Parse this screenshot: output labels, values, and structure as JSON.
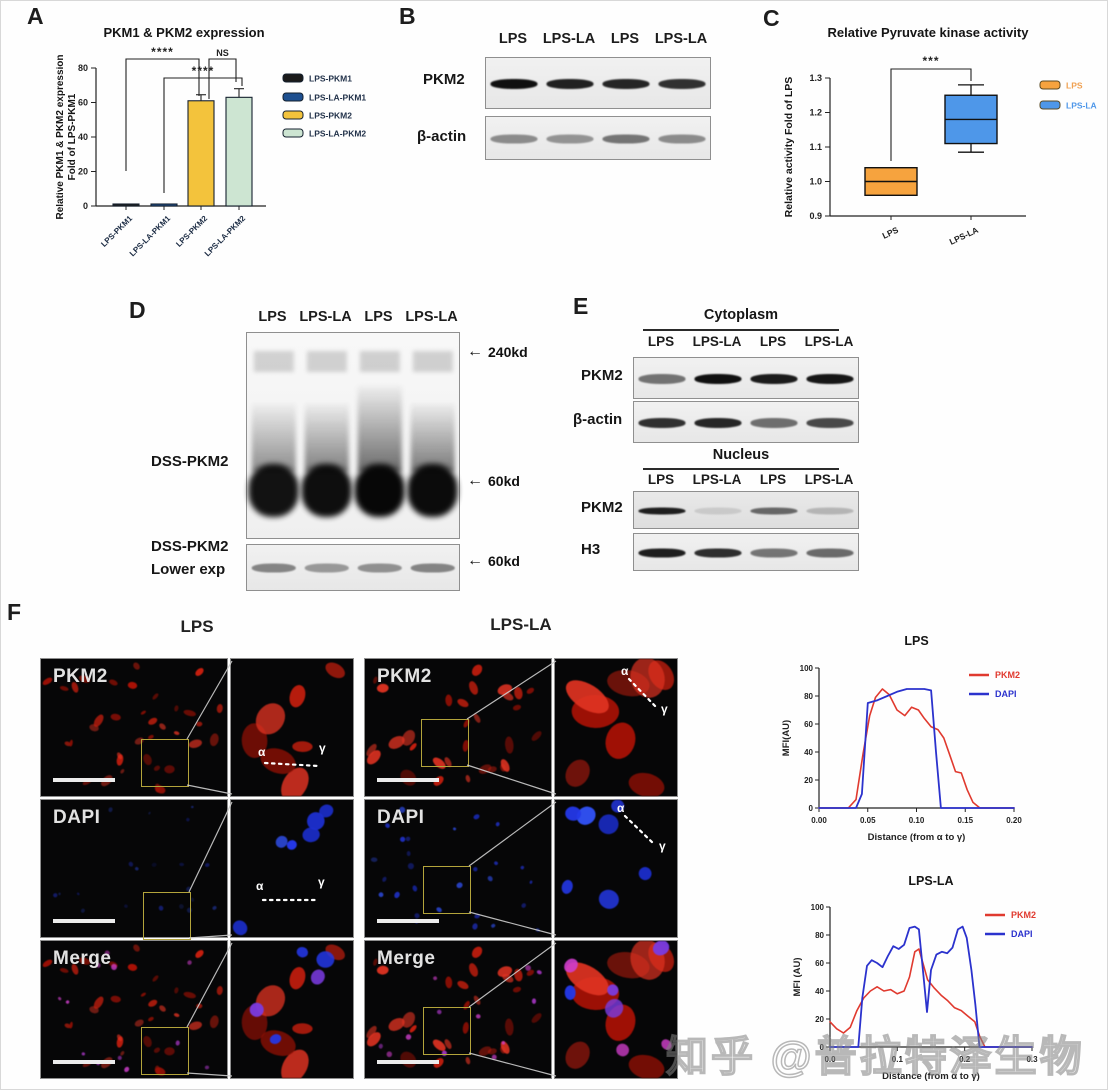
{
  "watermark": {
    "text": "知乎 @普拉特泽生物"
  },
  "panels": {
    "A": {
      "tag": "A"
    },
    "B": {
      "tag": "B",
      "lanes": [
        "LPS",
        "LPS-LA",
        "LPS",
        "LPS-LA"
      ],
      "blots": [
        {
          "label": "PKM2",
          "bands": [
            1,
            0.92,
            0.9,
            0.85
          ]
        },
        {
          "label": "β-actin",
          "bands": [
            0.55,
            0.5,
            0.68,
            0.55
          ]
        }
      ]
    },
    "C": {
      "tag": "C"
    },
    "D": {
      "tag": "D",
      "lanes": [
        "LPS",
        "LPS-LA",
        "LPS",
        "LPS-LA"
      ],
      "label_main": "DSS-PKM2",
      "label_lower_line1": "DSS-PKM2",
      "label_lower_line2": "Lower exp",
      "markers": {
        "m240": "240kd",
        "m60_main": "60kd",
        "m60_lower": "60kd"
      },
      "smear": [
        0.75,
        0.85,
        1,
        0.9
      ],
      "lower_bands": [
        0.62,
        0.5,
        0.55,
        0.62
      ]
    },
    "E": {
      "tag": "E",
      "sections": [
        {
          "title": "Cytoplasm",
          "lanes": [
            "LPS",
            "LPS-LA",
            "LPS",
            "LPS-LA"
          ],
          "blots": [
            {
              "label": "PKM2",
              "bands": [
                0.55,
                1,
                0.95,
                0.97
              ]
            },
            {
              "label": "β-actin",
              "bands": [
                0.9,
                0.95,
                0.6,
                0.78
              ]
            }
          ]
        },
        {
          "title": "Nucleus",
          "lanes": [
            "LPS",
            "LPS-LA",
            "LPS",
            "LPS-LA"
          ],
          "blots": [
            {
              "label": "PKM2",
              "bands": [
                0.95,
                0.12,
                0.6,
                0.22
              ]
            },
            {
              "label": "H3",
              "bands": [
                0.95,
                0.88,
                0.55,
                0.6
              ]
            }
          ]
        }
      ]
    },
    "F": {
      "tag": "F",
      "columns": [
        "LPS",
        "LPS-LA"
      ],
      "rows": [
        "PKM2",
        "DAPI",
        "Merge"
      ],
      "alpha": "α",
      "gamma": "γ"
    }
  },
  "chart_data": [
    {
      "id": "A",
      "type": "bar",
      "title": "PKM1 & PKM2 expression",
      "ylabel": [
        "Relative PKM1 & PKM2 expression",
        "Fold of LPS-PKM1"
      ],
      "categories": [
        "LPS-PKM1",
        "LPS-LA-PKM1",
        "LPS-PKM2",
        "LPS-LA-PKM2"
      ],
      "values": [
        1,
        1,
        61,
        63
      ],
      "errors": [
        0.4,
        0.4,
        3.5,
        5
      ],
      "bar_colors": [
        "#1a1a1a",
        "#1d4f8f",
        "#f3c33c",
        "#cde5d2"
      ],
      "bar_border": "#16212f",
      "ylim": [
        0,
        80
      ],
      "yticks": [
        0,
        20,
        40,
        60,
        80
      ],
      "legend": [
        {
          "label": "LPS-PKM1",
          "color": "#1a1a1a"
        },
        {
          "label": "LPS-LA-PKM1",
          "color": "#1d4f8f"
        },
        {
          "label": "LPS-PKM2",
          "color": "#f3c33c"
        },
        {
          "label": "LPS-LA-PKM2",
          "color": "#cde5d2"
        }
      ],
      "significance": [
        {
          "from": 0,
          "to": 2,
          "label": "****"
        },
        {
          "from": 1,
          "to": 3,
          "label": "****"
        },
        {
          "from": 2,
          "to": 3,
          "label": "NS"
        }
      ]
    },
    {
      "id": "C",
      "type": "box",
      "title": "Relative Pyruvate kinase activity",
      "ylabel": "Relative activity Fold of LPS",
      "categories": [
        "LPS",
        "LPS-LA"
      ],
      "boxes": [
        {
          "label": "LPS",
          "whisker_low": 0.96,
          "q1": 0.96,
          "median": 1.0,
          "q3": 1.04,
          "whisker_high": 1.04,
          "fill": "#f6a33e"
        },
        {
          "label": "LPS-LA",
          "whisker_low": 1.085,
          "q1": 1.11,
          "median": 1.18,
          "q3": 1.25,
          "whisker_high": 1.28,
          "fill": "#4e97e9"
        }
      ],
      "ylim": [
        0.9,
        1.3
      ],
      "yticks": [
        0.9,
        1.0,
        1.1,
        1.2,
        1.3
      ],
      "legend": [
        {
          "label": "LPS",
          "color": "#f6a33e",
          "text_color": "#f0a050"
        },
        {
          "label": "LPS-LA",
          "color": "#4e97e9",
          "text_color": "#4e97e9"
        }
      ],
      "significance": {
        "label": "***"
      }
    },
    {
      "id": "F-LPS",
      "type": "line",
      "title": "LPS",
      "xlabel": "Distance (from α to γ)",
      "ylabel": "MFI(AU)",
      "xlim": [
        0,
        0.2
      ],
      "xticks": [
        "0.00",
        "0.05",
        "0.10",
        "0.15",
        "0.20"
      ],
      "ylim": [
        0,
        100
      ],
      "yticks": [
        0,
        20,
        40,
        60,
        80,
        100
      ],
      "series": [
        {
          "name": "PKM2",
          "color": "#e03a2f",
          "x": [
            0,
            0.03,
            0.038,
            0.045,
            0.052,
            0.058,
            0.065,
            0.072,
            0.08,
            0.088,
            0.095,
            0.102,
            0.108,
            0.115,
            0.122,
            0.128,
            0.134,
            0.14,
            0.146,
            0.152,
            0.158,
            0.165,
            0.2
          ],
          "y": [
            0,
            0,
            6,
            38,
            66,
            79,
            85,
            81,
            70,
            66,
            72,
            70,
            64,
            58,
            56,
            50,
            38,
            26,
            25,
            13,
            4,
            0,
            0
          ]
        },
        {
          "name": "DAPI",
          "color": "#2b32cd",
          "x": [
            0,
            0.038,
            0.044,
            0.05,
            0.06,
            0.07,
            0.08,
            0.09,
            0.1,
            0.108,
            0.115,
            0.12,
            0.125,
            0.2
          ],
          "y": [
            0,
            0,
            10,
            75,
            77,
            80,
            83,
            85,
            85,
            85,
            84,
            40,
            0,
            0
          ]
        }
      ]
    },
    {
      "id": "F-LPSLA",
      "type": "line",
      "title": "LPS-LA",
      "xlabel": "Distance (from α to γ)",
      "ylabel": "MFI (AU)",
      "xlim": [
        0,
        0.3
      ],
      "xticks": [
        "0.0",
        "0.1",
        "0.2",
        "0.3"
      ],
      "ylim": [
        0,
        100
      ],
      "yticks": [
        0,
        20,
        40,
        60,
        80,
        100
      ],
      "series": [
        {
          "name": "PKM2",
          "color": "#e03a2f",
          "x": [
            0,
            0.01,
            0.02,
            0.03,
            0.04,
            0.05,
            0.06,
            0.07,
            0.08,
            0.09,
            0.1,
            0.11,
            0.118,
            0.126,
            0.132,
            0.138,
            0.145,
            0.155,
            0.165,
            0.175,
            0.185,
            0.195,
            0.205,
            0.215,
            0.222,
            0.23,
            0.3
          ],
          "y": [
            18,
            13,
            10,
            14,
            26,
            35,
            40,
            43,
            40,
            41,
            38,
            40,
            50,
            68,
            70,
            60,
            48,
            42,
            37,
            33,
            28,
            26,
            22,
            18,
            8,
            0,
            0
          ]
        },
        {
          "name": "DAPI",
          "color": "#2b32cd",
          "x": [
            0,
            0.042,
            0.048,
            0.055,
            0.062,
            0.07,
            0.078,
            0.086,
            0.094,
            0.102,
            0.11,
            0.118,
            0.126,
            0.132,
            0.138,
            0.144,
            0.15,
            0.158,
            0.166,
            0.174,
            0.182,
            0.19,
            0.197,
            0.203,
            0.21,
            0.216,
            0.222,
            0.3
          ],
          "y": [
            0,
            0,
            35,
            58,
            62,
            60,
            57,
            65,
            72,
            70,
            73,
            85,
            86,
            84,
            55,
            25,
            55,
            66,
            68,
            67,
            71,
            84,
            86,
            78,
            55,
            30,
            0,
            0
          ]
        }
      ]
    }
  ]
}
